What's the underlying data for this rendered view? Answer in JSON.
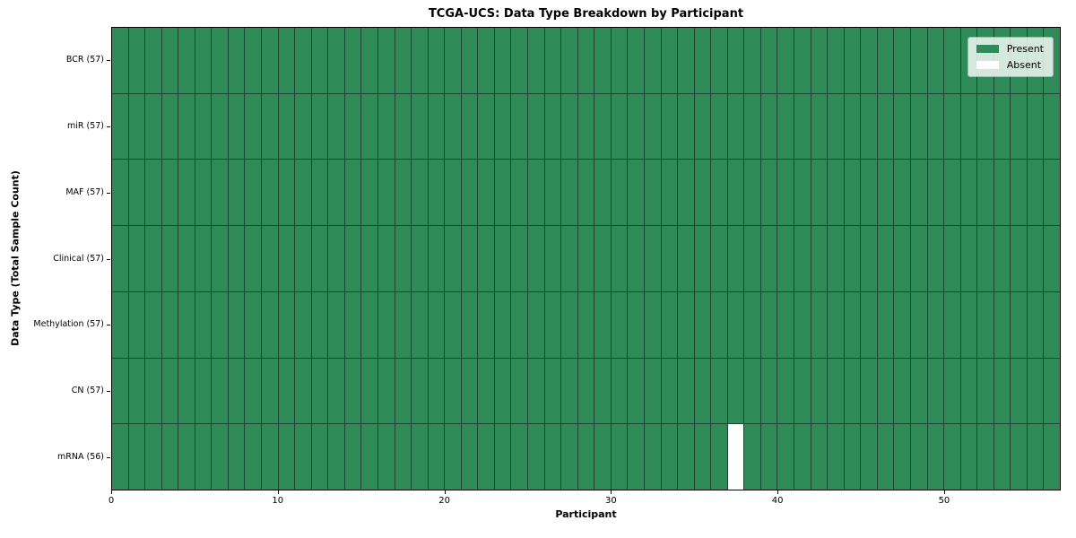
{
  "chart_data": {
    "type": "heatmap",
    "title": "TCGA-UCS: Data Type Breakdown by Participant",
    "xlabel": "Participant",
    "ylabel": "Data Type (Total Sample Count)",
    "n_participants": 57,
    "x_max": 57,
    "x_ticks": [
      0,
      10,
      20,
      30,
      40,
      50
    ],
    "rows": [
      {
        "label": "BCR (57)",
        "present_count": 57,
        "absent_participants": []
      },
      {
        "label": "miR (57)",
        "present_count": 57,
        "absent_participants": []
      },
      {
        "label": "MAF (57)",
        "present_count": 57,
        "absent_participants": []
      },
      {
        "label": "Clinical (57)",
        "present_count": 57,
        "absent_participants": []
      },
      {
        "label": "Methylation (57)",
        "present_count": 57,
        "absent_participants": []
      },
      {
        "label": "CN (57)",
        "present_count": 57,
        "absent_participants": []
      },
      {
        "label": "mRNA (56)",
        "present_count": 56,
        "absent_participants": [
          37
        ]
      }
    ],
    "legend": [
      {
        "label": "Present",
        "color": "#2e8b57"
      },
      {
        "label": "Absent",
        "color": "#ffffff"
      }
    ],
    "colors": {
      "present": "#2e8b57",
      "absent": "#ffffff"
    },
    "layout_hints": {
      "legend_position": "upper right",
      "grid": "cell-borders"
    }
  }
}
